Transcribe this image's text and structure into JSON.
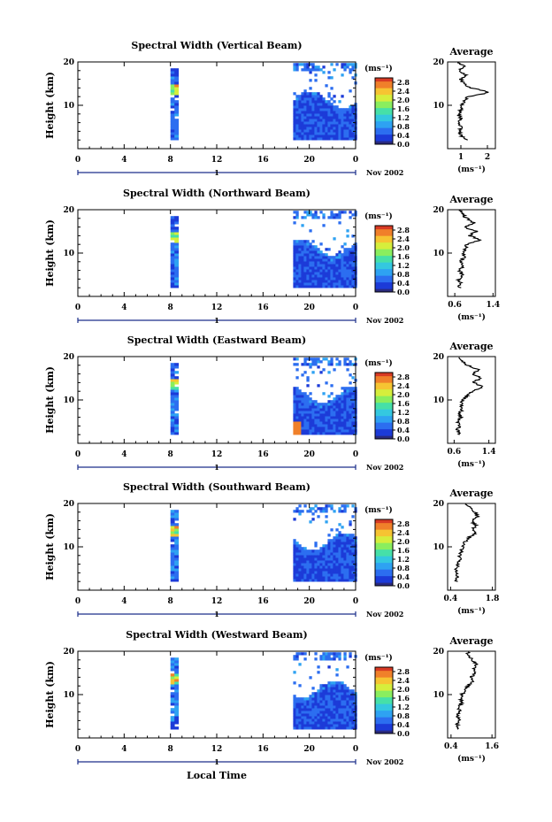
{
  "figure": {
    "xlabel": "Local Time",
    "y_axis_label": "Height (km)",
    "date_label": "Nov 2002",
    "day_marker": "1",
    "x_ticks": [
      "0",
      "4",
      "8",
      "12",
      "16",
      "20",
      "0"
    ],
    "y_ticks": [
      "10",
      "20"
    ],
    "colorbar_unit": "(ms⁻¹)",
    "colorbar_ticks": [
      "2.8",
      "2.4",
      "2.0",
      "1.6",
      "1.2",
      "0.8",
      "0.4",
      "0.0"
    ],
    "average_title": "Average",
    "average_unit": "(ms⁻¹)"
  },
  "chart_data": [
    {
      "type": "heatmap",
      "title": "Spectral Width (Vertical Beam)",
      "xlabel": "Local Time",
      "ylabel": "Height (km)",
      "xlim": [
        0,
        24
      ],
      "ylim": [
        0,
        20
      ],
      "data_columns": [
        [
          8,
          8.7
        ],
        [
          18.6,
          24
        ]
      ],
      "colorbar": {
        "label": "(ms⁻¹)",
        "range": [
          0,
          3.0
        ]
      },
      "average": {
        "title": "Average",
        "xlabel": "(ms⁻¹)",
        "xticks": [
          "1",
          "2"
        ],
        "xlim": [
          0.5,
          2.3
        ],
        "profile": [
          [
            1.2,
            2
          ],
          [
            1.0,
            3
          ],
          [
            0.95,
            4
          ],
          [
            1.0,
            5
          ],
          [
            0.95,
            6
          ],
          [
            1.0,
            7
          ],
          [
            0.9,
            8
          ],
          [
            1.0,
            9
          ],
          [
            1.05,
            10
          ],
          [
            1.1,
            11
          ],
          [
            1.3,
            12
          ],
          [
            2.1,
            13
          ],
          [
            1.4,
            14
          ],
          [
            1.1,
            15
          ],
          [
            1.0,
            16
          ],
          [
            1.2,
            17
          ],
          [
            0.9,
            18
          ],
          [
            1.1,
            19
          ],
          [
            0.9,
            20
          ]
        ]
      }
    },
    {
      "type": "heatmap",
      "title": "Spectral Width (Northward Beam)",
      "xlabel": "Local Time",
      "ylabel": "Height (km)",
      "xlim": [
        0,
        24
      ],
      "ylim": [
        0,
        20
      ],
      "data_columns": [
        [
          8,
          8.7
        ],
        [
          18.6,
          24
        ]
      ],
      "colorbar": {
        "label": "(ms⁻¹)",
        "range": [
          0,
          3.0
        ]
      },
      "average": {
        "title": "Average",
        "xlabel": "(ms⁻¹)",
        "xticks": [
          "0.6",
          "1.4"
        ],
        "xlim": [
          0.45,
          1.45
        ],
        "profile": [
          [
            0.7,
            2
          ],
          [
            0.72,
            3
          ],
          [
            0.68,
            4
          ],
          [
            0.75,
            5
          ],
          [
            0.7,
            6
          ],
          [
            0.78,
            7
          ],
          [
            0.72,
            8
          ],
          [
            0.8,
            9
          ],
          [
            0.75,
            10
          ],
          [
            0.82,
            11
          ],
          [
            0.85,
            12
          ],
          [
            1.15,
            13
          ],
          [
            0.9,
            14
          ],
          [
            1.05,
            15
          ],
          [
            0.8,
            16
          ],
          [
            1.0,
            17
          ],
          [
            0.85,
            18
          ],
          [
            0.75,
            19
          ],
          [
            0.7,
            20
          ]
        ]
      }
    },
    {
      "type": "heatmap",
      "title": "Spectral Width (Eastward Beam)",
      "xlabel": "Local Time",
      "ylabel": "Height (km)",
      "xlim": [
        0,
        24
      ],
      "ylim": [
        0,
        20
      ],
      "data_columns": [
        [
          8,
          8.7
        ],
        [
          18.6,
          24
        ]
      ],
      "colorbar": {
        "label": "(ms⁻¹)",
        "range": [
          0,
          3.0
        ]
      },
      "average": {
        "title": "Average",
        "xlabel": "(ms⁻¹)",
        "xticks": [
          "0.6",
          "1.4"
        ],
        "xlim": [
          0.45,
          1.55
        ],
        "profile": [
          [
            0.7,
            2
          ],
          [
            0.68,
            3
          ],
          [
            0.72,
            4
          ],
          [
            0.7,
            5
          ],
          [
            0.75,
            6
          ],
          [
            0.72,
            7
          ],
          [
            0.8,
            8
          ],
          [
            0.75,
            9
          ],
          [
            0.82,
            10
          ],
          [
            0.9,
            11
          ],
          [
            1.0,
            12
          ],
          [
            1.25,
            13
          ],
          [
            1.05,
            14
          ],
          [
            1.2,
            15
          ],
          [
            1.05,
            16
          ],
          [
            1.15,
            17
          ],
          [
            0.9,
            18
          ],
          [
            0.8,
            19
          ],
          [
            0.7,
            20
          ]
        ]
      }
    },
    {
      "type": "heatmap",
      "title": "Spectral Width (Southward Beam)",
      "xlabel": "Local Time",
      "ylabel": "Height (km)",
      "xlim": [
        0,
        24
      ],
      "ylim": [
        0,
        20
      ],
      "data_columns": [
        [
          8,
          8.7
        ],
        [
          18.6,
          24
        ]
      ],
      "colorbar": {
        "label": "(ms⁻¹)",
        "range": [
          0,
          3.0
        ]
      },
      "average": {
        "title": "Average",
        "xlabel": "(ms⁻¹)",
        "xticks": [
          "0.4",
          "1.8"
        ],
        "xlim": [
          0.3,
          1.9
        ],
        "profile": [
          [
            0.6,
            2
          ],
          [
            0.62,
            3
          ],
          [
            0.58,
            4
          ],
          [
            0.6,
            5
          ],
          [
            0.65,
            6
          ],
          [
            0.7,
            7
          ],
          [
            0.68,
            8
          ],
          [
            0.75,
            9
          ],
          [
            0.8,
            10
          ],
          [
            0.85,
            11
          ],
          [
            1.0,
            12
          ],
          [
            1.2,
            13
          ],
          [
            1.15,
            14
          ],
          [
            1.25,
            15
          ],
          [
            1.1,
            16
          ],
          [
            1.3,
            17
          ],
          [
            1.2,
            18
          ],
          [
            1.05,
            19
          ],
          [
            0.9,
            20
          ]
        ]
      }
    },
    {
      "type": "heatmap",
      "title": "Spectral Width (Westward Beam)",
      "xlabel": "Local Time",
      "ylabel": "Height (km)",
      "xlim": [
        0,
        24
      ],
      "ylim": [
        0,
        20
      ],
      "data_columns": [
        [
          8,
          8.7
        ],
        [
          18.6,
          24
        ]
      ],
      "colorbar": {
        "label": "(ms⁻¹)",
        "range": [
          0,
          3.0
        ]
      },
      "average": {
        "title": "Average",
        "xlabel": "(ms⁻¹)",
        "xticks": [
          "0.4",
          "1.6"
        ],
        "xlim": [
          0.3,
          1.7
        ],
        "profile": [
          [
            0.6,
            2
          ],
          [
            0.58,
            3
          ],
          [
            0.62,
            4
          ],
          [
            0.6,
            5
          ],
          [
            0.65,
            6
          ],
          [
            0.62,
            7
          ],
          [
            0.7,
            8
          ],
          [
            0.68,
            9
          ],
          [
            0.72,
            10
          ],
          [
            0.8,
            11
          ],
          [
            0.9,
            12
          ],
          [
            1.05,
            13
          ],
          [
            1.0,
            14
          ],
          [
            1.1,
            15
          ],
          [
            1.05,
            16
          ],
          [
            1.15,
            17
          ],
          [
            1.0,
            18
          ],
          [
            0.95,
            19
          ],
          [
            0.85,
            20
          ]
        ]
      }
    }
  ],
  "colormap": [
    "#2a2a80",
    "#1c3bd8",
    "#2c6ef0",
    "#2ea2f2",
    "#34c8e0",
    "#46e0a8",
    "#8aee5e",
    "#d6ee3c",
    "#f6c432",
    "#f0802a",
    "#d83a24"
  ]
}
